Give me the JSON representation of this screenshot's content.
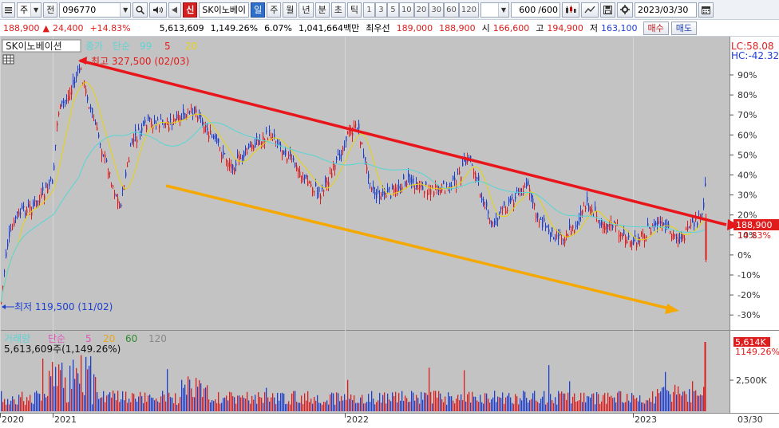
{
  "toolbar": {
    "period_type": "주",
    "period_arrow": "▼",
    "market": "전",
    "stock_code": "096770",
    "badge_new": "신",
    "stock_name": "SK이노베이",
    "tf_day": "일",
    "tf_week": "주",
    "tf_month": "월",
    "tf_year": "년",
    "tf_min": "분",
    "tf_sec": "초",
    "tf_tick": "틱",
    "minute_options": [
      "1",
      "3",
      "5",
      "10",
      "20",
      "30",
      "60",
      "120"
    ],
    "count": "600",
    "count_total": "/600",
    "date": "2023/03/30"
  },
  "quote": {
    "price": "188,900",
    "change_arrow": "▲",
    "change": "24,400",
    "change_pct": "+14.83%",
    "volume": "5,613,609",
    "volume_ratio": "1,149.26%",
    "turnover": "6.07%",
    "amount": "1,041,664백만",
    "priority_label": "최우선",
    "ask": "189,000",
    "bid": "188,900",
    "open_label": "시",
    "open": "166,600",
    "high_label": "고",
    "high": "194,900",
    "low_label": "저",
    "low": "163,100",
    "buy_label": "매수",
    "sell_label": "매도"
  },
  "chart": {
    "name": "SK이노베이션",
    "legend": {
      "type_label": "종가",
      "ma_label": "단순",
      "ma1": "99",
      "ma2": "5",
      "ma3": "20"
    },
    "high_note": "최고 327,500 (02/03)",
    "low_note": "최저 119,500 (11/02)",
    "right_top1": "LC:58.08",
    "right_top2": "HC:-42.32",
    "current_price_label": "188,900",
    "current_pct_label": "14.83%",
    "y_ticks": [
      "90%",
      "80%",
      "70%",
      "60%",
      "50%",
      "40%",
      "30%",
      "20%",
      "10%",
      "0%",
      "-10%",
      "-20%",
      "-30%"
    ],
    "x_ticks": [
      "2020",
      "2021",
      "2022",
      "2023"
    ],
    "date_end": "03/30"
  },
  "volume_panel": {
    "legend": {
      "label": "거래량",
      "ma_label": "단순",
      "ma1": "5",
      "ma2": "20",
      "ma3": "60",
      "ma4": "120"
    },
    "value_text": "5,613,609주(1,149.26%)",
    "right_label1": "5,614K",
    "right_label2": "1149.26%",
    "axis_tick": "2,500K"
  },
  "colors": {
    "up": "#e01b1b",
    "down": "#1d3fd1",
    "trend_resistance": "#e8161b",
    "trend_support": "#f5a800",
    "ma_short": "#e6d21a",
    "ma_long": "#5fd4d4"
  },
  "chart_data": {
    "type": "candlestick",
    "series": [
      {
        "name": "99",
        "type": "ma"
      },
      {
        "name": "5",
        "type": "ma"
      },
      {
        "name": "20",
        "type": "ma"
      }
    ],
    "annotations": [
      {
        "text": "최고 327,500 (02/03)",
        "value": 327500
      },
      {
        "text": "최저 119,500 (11/02)",
        "value": 119500
      }
    ],
    "last_close": 188900,
    "y_axis": "percent",
    "ylim": [
      -30,
      90
    ]
  }
}
